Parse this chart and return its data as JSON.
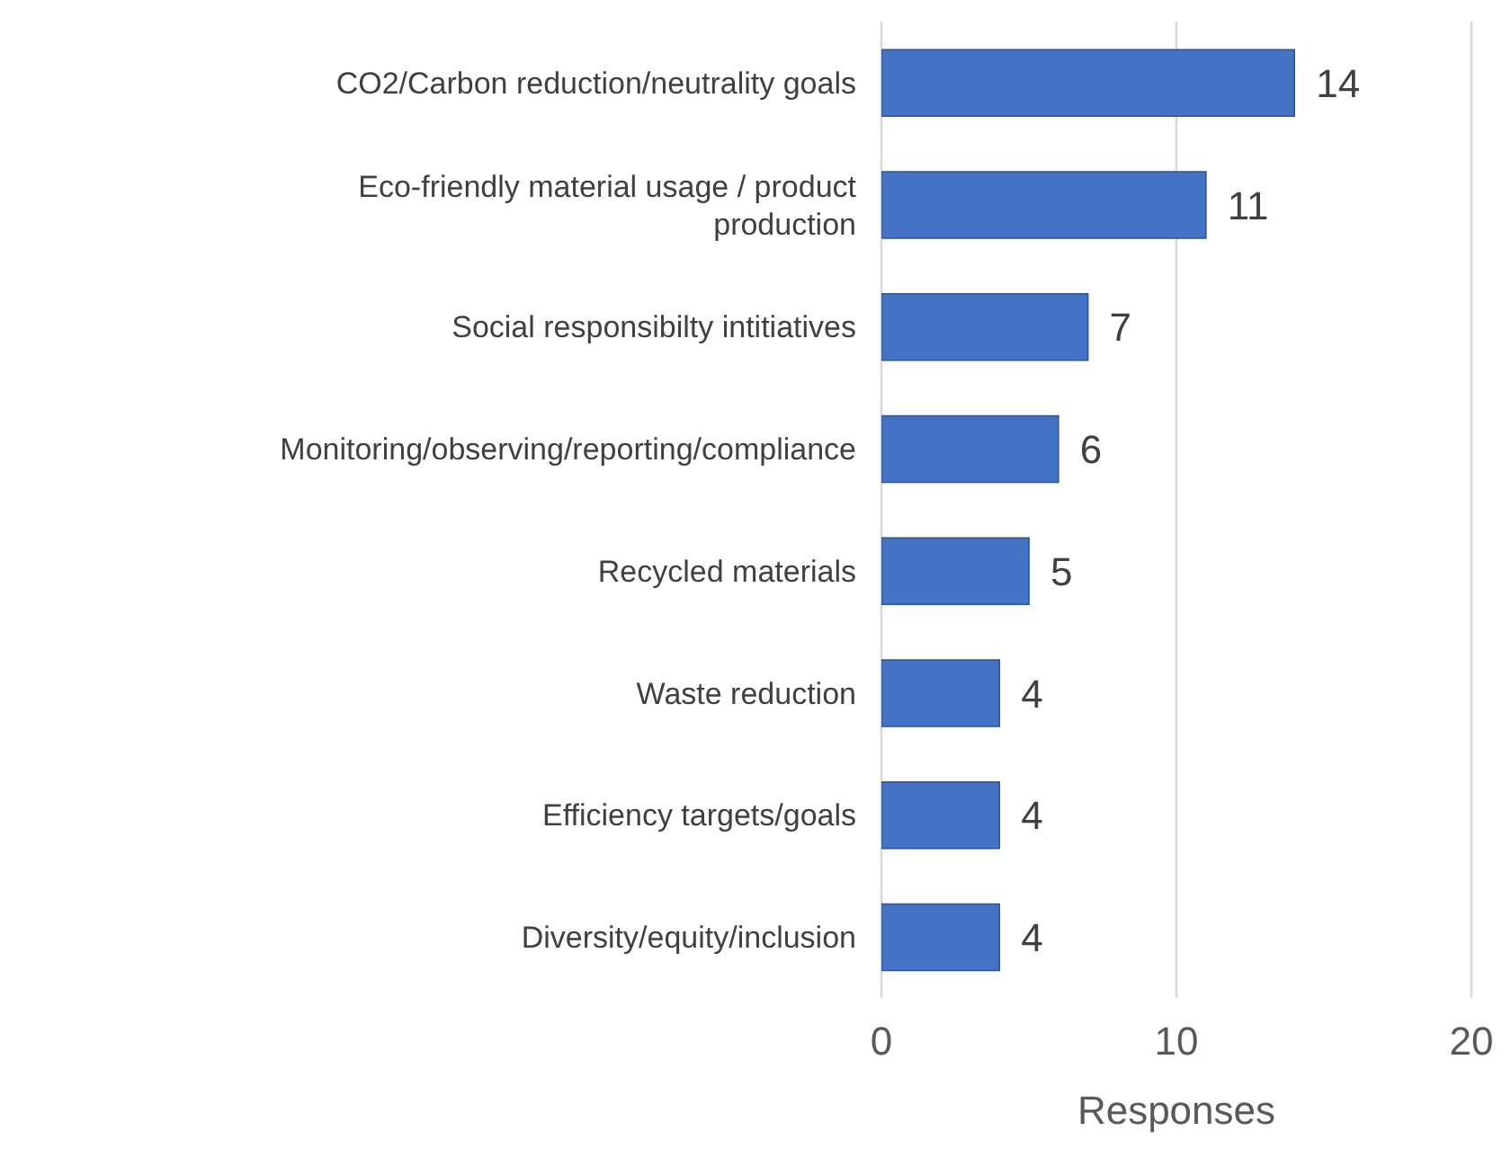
{
  "chart_data": {
    "type": "bar",
    "orientation": "horizontal",
    "xlabel": "Responses",
    "categories": [
      "CO2/Carbon reduction/neutrality goals",
      "Eco-friendly material usage / product production",
      "Social responsibilty intitiatives",
      "Monitoring/observing/reporting/compliance",
      "Recycled materials ",
      "Waste reduction",
      "Efficiency targets/goals",
      "Diversity/equity/inclusion"
    ],
    "values": [
      14,
      11,
      7,
      6,
      5,
      4,
      4,
      4
    ],
    "color": "#4472c4",
    "xlim": [
      0,
      20
    ],
    "xticks": [
      0,
      10,
      20
    ],
    "grid": "x",
    "data_labels": true
  }
}
